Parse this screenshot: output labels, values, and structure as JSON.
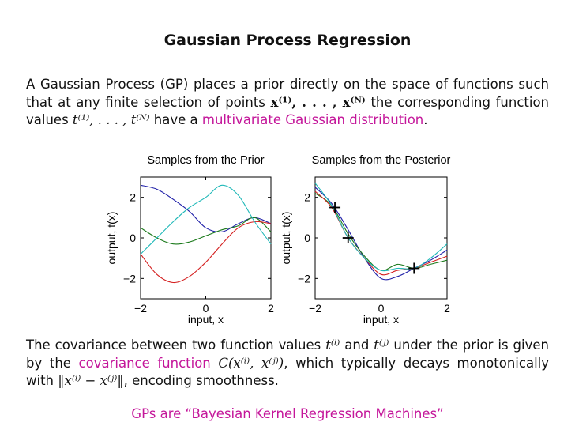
{
  "title": "Gaussian Process Regression",
  "intro": {
    "t1": "A Gaussian Process (GP) places a prior directly on the space of functions such that at any finite selection of points ",
    "m1": "x⁽¹⁾, . . . , x⁽ᴺ⁾",
    "t2": " the corresponding function values ",
    "m2": "t⁽¹⁾, . . . , t⁽ᴺ⁾",
    "t3": " have a ",
    "link": "multivariate Gaussian distribution",
    "t4": "."
  },
  "covariance_text": {
    "t1": "The covariance between two function values ",
    "m1": "t⁽ⁱ⁾",
    "t2": " and ",
    "m2": "t⁽ʲ⁾",
    "t3": " under the prior is given by the ",
    "link": "covariance function",
    "m3": "C(x⁽ⁱ⁾, x⁽ʲ⁾)",
    "t4": ", which typically decays monotonically with ",
    "m4": "‖x⁽ⁱ⁾ − x⁽ʲ⁾‖",
    "t5": ", encoding smoothness."
  },
  "conclusion": "GPs are “Bayesian Kernel Regression Machines”",
  "colors": {
    "accent": "#c4169a",
    "blue": "#1f1fa8",
    "green": "#1c7a1c",
    "red": "#d42020",
    "cyan": "#1fb8b8"
  },
  "chart_data": [
    {
      "type": "line",
      "title": "Samples from the Prior",
      "xlabel": "input, x",
      "ylabel": "output, t(x)",
      "xlim": [
        -2,
        2
      ],
      "ylim": [
        -3,
        3
      ],
      "xticks": [
        "−2",
        "0",
        "2"
      ],
      "yticks": [
        "−2",
        "0",
        "2"
      ],
      "x": [
        -2,
        -1.5,
        -1,
        -0.5,
        0,
        0.5,
        1,
        1.5,
        2
      ],
      "series": [
        {
          "color": "#1f1fa8",
          "values": [
            2.6,
            2.4,
            1.9,
            1.3,
            0.5,
            0.3,
            0.7,
            1.0,
            0.7
          ]
        },
        {
          "color": "#1c7a1c",
          "values": [
            0.5,
            0.0,
            -0.3,
            -0.2,
            0.1,
            0.4,
            0.6,
            1.0,
            0.3
          ]
        },
        {
          "color": "#d42020",
          "values": [
            -0.8,
            -1.8,
            -2.2,
            -1.9,
            -1.2,
            -0.3,
            0.5,
            0.8,
            0.7
          ]
        },
        {
          "color": "#1fb8b8",
          "values": [
            -0.8,
            0.0,
            0.8,
            1.5,
            2.0,
            2.6,
            2.1,
            0.8,
            -0.3
          ]
        }
      ]
    },
    {
      "type": "line",
      "title": "Samples from the Posterior",
      "xlabel": "input, x",
      "ylabel": "output, t(x)",
      "xlim": [
        -2,
        2
      ],
      "ylim": [
        -3,
        3
      ],
      "xticks": [
        "−2",
        "0",
        "2"
      ],
      "yticks": [
        "−2",
        "0",
        "2"
      ],
      "x": [
        -2,
        -1.5,
        -1,
        -0.5,
        0,
        0.5,
        1,
        1.5,
        2
      ],
      "observations": {
        "x": [
          -1.4,
          -1.0,
          1.0
        ],
        "y": [
          1.5,
          0.0,
          -1.5
        ]
      },
      "series": [
        {
          "color": "#1f1fa8",
          "values": [
            2.5,
            1.7,
            0.4,
            -1.0,
            -2.0,
            -1.9,
            -1.5,
            -1.1,
            -0.6
          ]
        },
        {
          "color": "#1c7a1c",
          "values": [
            2.2,
            1.6,
            0.2,
            -0.9,
            -1.6,
            -1.3,
            -1.5,
            -1.3,
            -1.1
          ]
        },
        {
          "color": "#d42020",
          "values": [
            2.3,
            1.5,
            0.0,
            -1.0,
            -1.8,
            -1.6,
            -1.5,
            -1.2,
            -0.9
          ]
        },
        {
          "color": "#1fb8b8",
          "values": [
            2.7,
            1.6,
            0.0,
            -1.0,
            -1.6,
            -1.5,
            -1.5,
            -1.0,
            -0.3
          ]
        }
      ]
    }
  ]
}
